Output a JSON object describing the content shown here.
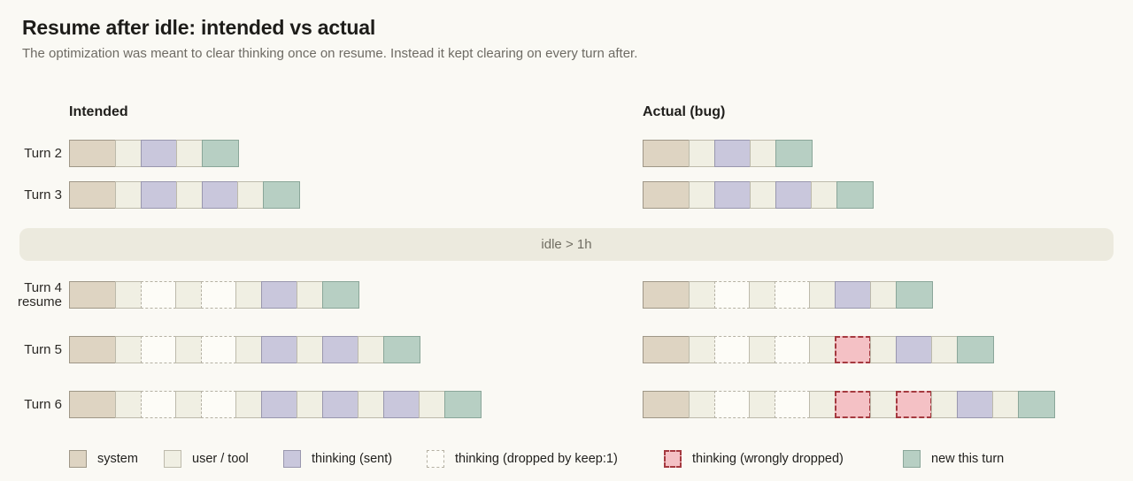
{
  "page": {
    "title": "Resume after idle: intended vs actual",
    "subtitle": "The optimization was meant to clear thinking once on resume. Instead it kept clearing on every turn after."
  },
  "columns": {
    "intended": "Intended",
    "actual": "Actual (bug)"
  },
  "idle_banner": {
    "text": "idle > 1h"
  },
  "block_types": {
    "sys": {
      "label": "system",
      "fill": "#ded4c2",
      "border": "#9f9787",
      "style": "solid"
    },
    "usr": {
      "label": "user / tool",
      "fill": "#f0efe3",
      "border": "#bdbaab",
      "style": "solid"
    },
    "thk": {
      "label": "thinking (sent)",
      "fill": "#c9c7dc",
      "border": "#9997ae",
      "style": "solid"
    },
    "drp": {
      "label": "thinking (dropped by keep:1)",
      "fill": "#fdfcf7",
      "border": "#b5b1a3",
      "style": "dashed"
    },
    "wrg": {
      "label": "thinking (wrongly dropped)",
      "fill": "#f4c1c5",
      "border": "#a53a40",
      "style": "dashed-bold"
    },
    "new": {
      "label": "new this turn",
      "fill": "#b7cfc3",
      "border": "#8aa699",
      "style": "solid"
    }
  },
  "turns": [
    {
      "id": "turn-2",
      "label": "Turn 2",
      "sublabel": "",
      "section": "before-idle",
      "intended": [
        "sys",
        "usr",
        "thk",
        "usr",
        "new"
      ],
      "actual": [
        "sys",
        "usr",
        "thk",
        "usr",
        "new"
      ]
    },
    {
      "id": "turn-3",
      "label": "Turn 3",
      "sublabel": "",
      "section": "before-idle",
      "intended": [
        "sys",
        "usr",
        "thk",
        "usr",
        "thk",
        "usr",
        "new"
      ],
      "actual": [
        "sys",
        "usr",
        "thk",
        "usr",
        "thk",
        "usr",
        "new"
      ]
    },
    {
      "id": "turn-4",
      "label": "Turn 4",
      "sublabel": "resume",
      "section": "after-idle",
      "intended": [
        "sys",
        "usr",
        "drp",
        "usr",
        "drp",
        "usr",
        "thk",
        "usr",
        "new"
      ],
      "actual": [
        "sys",
        "usr",
        "drp",
        "usr",
        "drp",
        "usr",
        "thk",
        "usr",
        "new"
      ]
    },
    {
      "id": "turn-5",
      "label": "Turn 5",
      "sublabel": "",
      "section": "after-idle",
      "intended": [
        "sys",
        "usr",
        "drp",
        "usr",
        "drp",
        "usr",
        "thk",
        "usr",
        "thk",
        "usr",
        "new"
      ],
      "actual": [
        "sys",
        "usr",
        "drp",
        "usr",
        "drp",
        "usr",
        "wrg",
        "usr",
        "thk",
        "usr",
        "new"
      ]
    },
    {
      "id": "turn-6",
      "label": "Turn 6",
      "sublabel": "",
      "section": "after-idle",
      "intended": [
        "sys",
        "usr",
        "drp",
        "usr",
        "drp",
        "usr",
        "thk",
        "usr",
        "thk",
        "usr",
        "thk",
        "usr",
        "new"
      ],
      "actual": [
        "sys",
        "usr",
        "drp",
        "usr",
        "drp",
        "usr",
        "wrg",
        "usr",
        "wrg",
        "usr",
        "thk",
        "usr",
        "new"
      ]
    }
  ],
  "legend": [
    {
      "type": "sys",
      "label": "system"
    },
    {
      "type": "usr",
      "label": "user / tool"
    },
    {
      "type": "thk",
      "label": "thinking (sent)"
    },
    {
      "type": "drp",
      "label": "thinking (dropped by keep:1)"
    },
    {
      "type": "wrg",
      "label": "thinking (wrongly dropped)"
    },
    {
      "type": "new",
      "label": "new this turn"
    }
  ]
}
